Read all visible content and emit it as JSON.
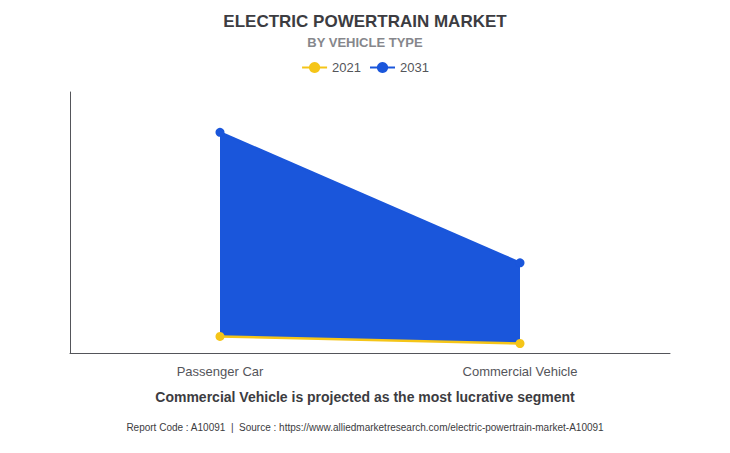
{
  "chart_data": {
    "type": "line",
    "title": "ELECTRIC POWERTRAIN MARKET",
    "subtitle": "BY VEHICLE TYPE",
    "categories": [
      "Passenger Car",
      "Commercial Vehicle"
    ],
    "series": [
      {
        "name": "2021",
        "color": "#F5C518",
        "marker": "circle",
        "values": [
          0.07,
          0.04
        ]
      },
      {
        "name": "2031",
        "color": "#1A56DB",
        "marker": "circle",
        "values": [
          0.93,
          0.38
        ]
      }
    ],
    "ylim": [
      0,
      1.1
    ],
    "yticks": [],
    "grid": false,
    "tick_labels": "x",
    "legend": "top",
    "annotations": [
      "Commercial Vehicle is projected as the most lucrative segment",
      "Report Code : A10091  |  Source : https://www.alliedmarketresearch.com/electric-powertrain-market-A10091"
    ]
  }
}
